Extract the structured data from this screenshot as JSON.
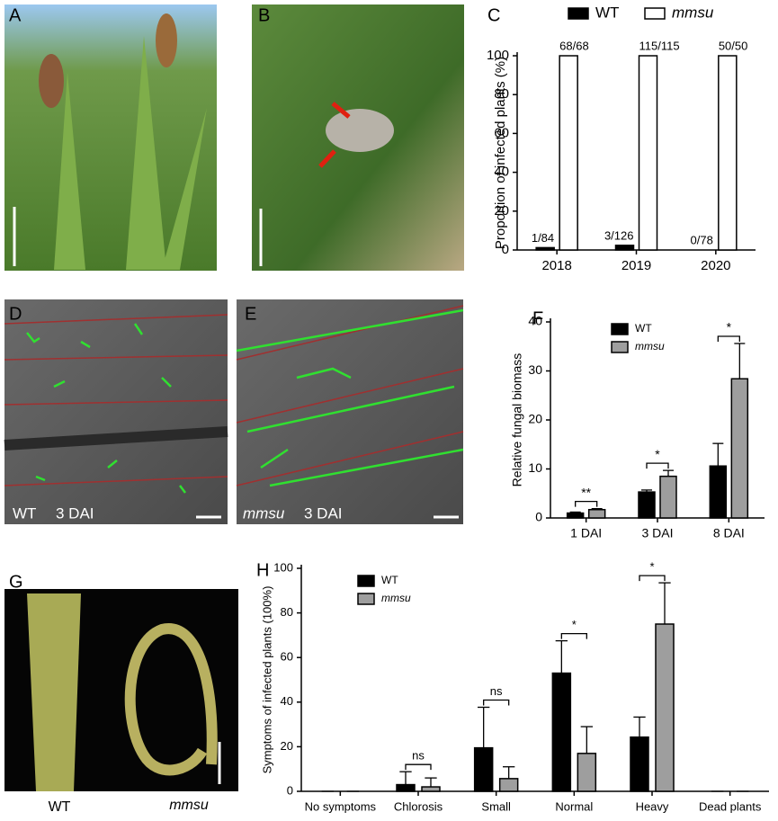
{
  "panel_labels": [
    "A",
    "B",
    "C",
    "D",
    "E",
    "F",
    "G",
    "H"
  ],
  "photo_captions": {
    "D": [
      "WT",
      "3 DAI"
    ],
    "E": [
      "mmsu",
      "3 DAI"
    ],
    "G": [
      "WT",
      "mmsu"
    ]
  },
  "chart_data": [
    {
      "type": "bar",
      "ylabel": "Proportion of infected plants (%)",
      "categories": [
        "2018",
        "2019",
        "2020"
      ],
      "series": [
        {
          "name": "WT",
          "color": "#000000",
          "values": [
            1.2,
            2.4,
            0
          ],
          "value_labels": [
            "1/84",
            "3/126",
            "0/78"
          ]
        },
        {
          "name": "mmsu",
          "italic": true,
          "color": "#ffffff",
          "values": [
            100,
            100,
            100
          ],
          "value_labels": [
            "68/68",
            "115/115",
            "50/50"
          ]
        }
      ],
      "ylim": [
        0,
        100
      ],
      "yticks": [
        0,
        20,
        40,
        60,
        80,
        100
      ],
      "legend": "top"
    },
    {
      "type": "bar",
      "ylabel": "Relative fungal biomass",
      "categories": [
        "1 DAI",
        "3 DAI",
        "8 DAI"
      ],
      "series": [
        {
          "name": "WT",
          "color": "#000000",
          "values": [
            1,
            5.3,
            10.6
          ],
          "errors": [
            0.2,
            0.4,
            4.6
          ]
        },
        {
          "name": "mmsu",
          "italic": true,
          "color": "#9e9e9e",
          "values": [
            1.7,
            8.5,
            28.4
          ],
          "errors": [
            0.2,
            1.2,
            7.2
          ]
        }
      ],
      "significance": [
        "**",
        "*",
        "*"
      ],
      "ylim": [
        0,
        40
      ],
      "yticks": [
        0,
        10,
        20,
        30,
        40
      ],
      "legend": "upper center"
    },
    {
      "type": "bar",
      "ylabel": "Symptoms of infected plants (100%)",
      "categories": [
        "No symptoms",
        "Chlorosis",
        "Small",
        "Normal",
        "Heavy",
        "Dead plants"
      ],
      "series": [
        {
          "name": "WT",
          "color": "#000000",
          "values": [
            0,
            3,
            19.5,
            53,
            24.3,
            0
          ],
          "errors": [
            0,
            5.8,
            18.2,
            14.5,
            9,
            0
          ]
        },
        {
          "name": "mmsu",
          "italic": true,
          "color": "#9e9e9e",
          "values": [
            0,
            2,
            5.7,
            17,
            75,
            0
          ],
          "errors": [
            0,
            4,
            5.3,
            12,
            18.5,
            0
          ]
        }
      ],
      "significance": [
        null,
        "ns",
        "ns",
        "*",
        "*",
        null
      ],
      "ylim": [
        0,
        100
      ],
      "yticks": [
        0,
        20,
        40,
        60,
        80,
        100
      ],
      "legend": "upper left"
    }
  ]
}
